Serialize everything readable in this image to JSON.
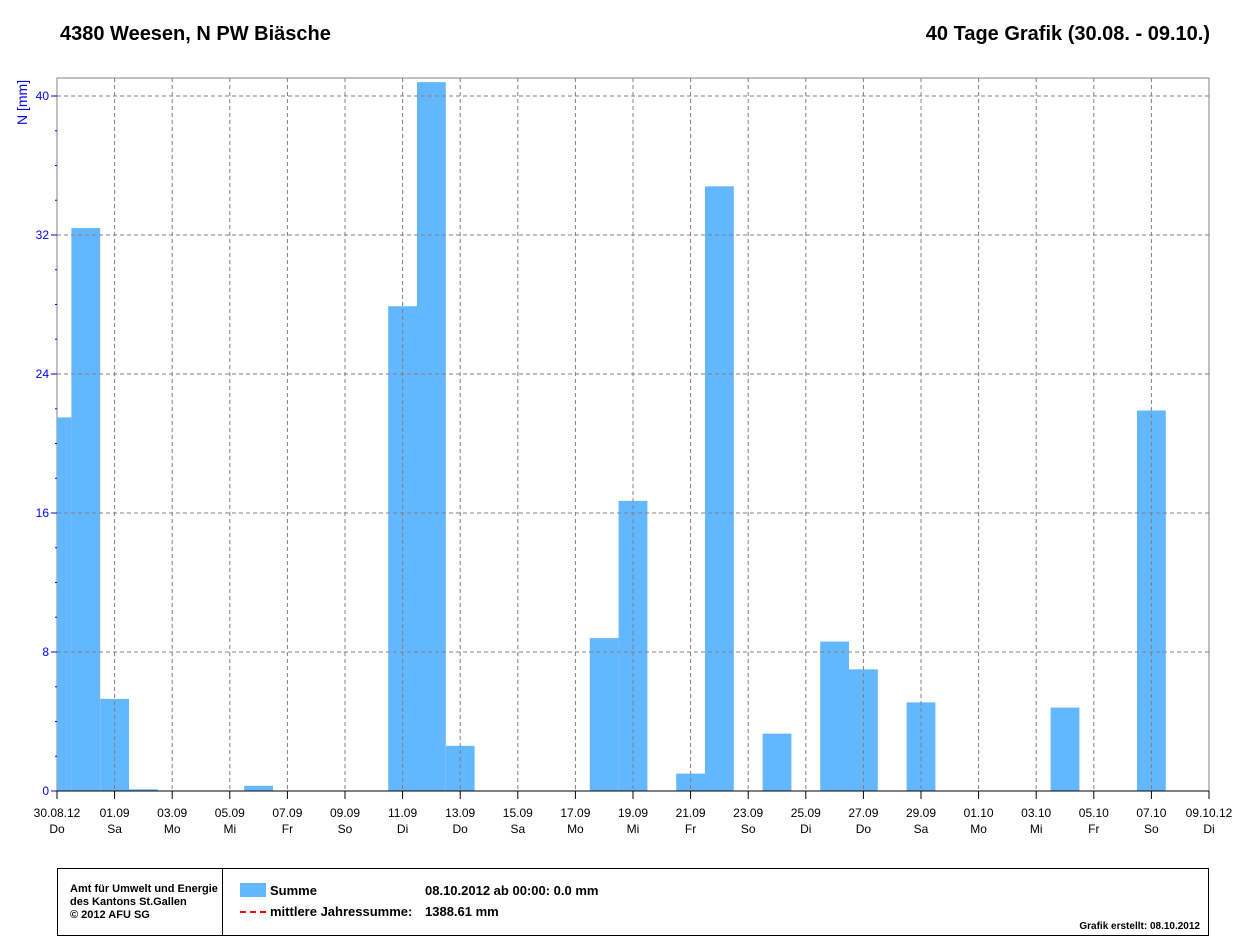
{
  "header": {
    "station": "4380 Weesen, N PW Biäsche",
    "period": "40 Tage Grafik (30.08. - 09.10.)"
  },
  "chart_data": {
    "type": "bar",
    "title": "4380 Weesen, N PW Biäsche",
    "ylabel": "N [mm]",
    "ylim": [
      0,
      41
    ],
    "yticks": [
      0,
      8,
      16,
      24,
      32,
      40
    ],
    "xlim_days": [
      0,
      40
    ],
    "start_date": "30.08.12",
    "xticks": [
      {
        "day": 0,
        "date": "30.08.12",
        "wd": "Do"
      },
      {
        "day": 2,
        "date": "01.09",
        "wd": "Sa"
      },
      {
        "day": 4,
        "date": "03.09",
        "wd": "Mo"
      },
      {
        "day": 6,
        "date": "05.09",
        "wd": "Mi"
      },
      {
        "day": 8,
        "date": "07.09",
        "wd": "Fr"
      },
      {
        "day": 10,
        "date": "09.09",
        "wd": "So"
      },
      {
        "day": 12,
        "date": "11.09",
        "wd": "Di"
      },
      {
        "day": 14,
        "date": "13.09",
        "wd": "Do"
      },
      {
        "day": 16,
        "date": "15.09",
        "wd": "Sa"
      },
      {
        "day": 18,
        "date": "17.09",
        "wd": "Mo"
      },
      {
        "day": 20,
        "date": "19.09",
        "wd": "Mi"
      },
      {
        "day": 22,
        "date": "21.09",
        "wd": "Fr"
      },
      {
        "day": 24,
        "date": "23.09",
        "wd": "So"
      },
      {
        "day": 26,
        "date": "25.09",
        "wd": "Di"
      },
      {
        "day": 28,
        "date": "27.09",
        "wd": "Do"
      },
      {
        "day": 30,
        "date": "29.09",
        "wd": "Sa"
      },
      {
        "day": 32,
        "date": "01.10",
        "wd": "Mo"
      },
      {
        "day": 34,
        "date": "03.10",
        "wd": "Mi"
      },
      {
        "day": 36,
        "date": "05.10",
        "wd": "Fr"
      },
      {
        "day": 38,
        "date": "07.10",
        "wd": "So"
      },
      {
        "day": 40,
        "date": "09.10.12",
        "wd": "Di"
      }
    ],
    "series": [
      {
        "name": "Summe",
        "color": "#63b7ff",
        "values": [
          21.5,
          32.4,
          5.3,
          0.1,
          0,
          0,
          0,
          0.3,
          0,
          0,
          0,
          0,
          27.9,
          40.8,
          2.6,
          0,
          0,
          0,
          0,
          8.8,
          16.7,
          0,
          1.0,
          34.8,
          0,
          3.3,
          0,
          8.6,
          7.0,
          0,
          5.1,
          0,
          0,
          0,
          0,
          4.8,
          0,
          0,
          21.9,
          0
        ]
      }
    ],
    "grid": true
  },
  "legend": {
    "org": [
      "Amt für Umwelt und Energie",
      "des Kantons St.Gallen",
      "© 2012 AFU SG"
    ],
    "summe_label": "Summe",
    "summe_value": "08.10.2012 ab 00:00: 0.0 mm",
    "mean_label": "mittlere Jahressumme:",
    "mean_value": "1388.61 mm",
    "created": "Grafik erstellt: 08.10.2012",
    "mean_color": "#ff0000"
  }
}
